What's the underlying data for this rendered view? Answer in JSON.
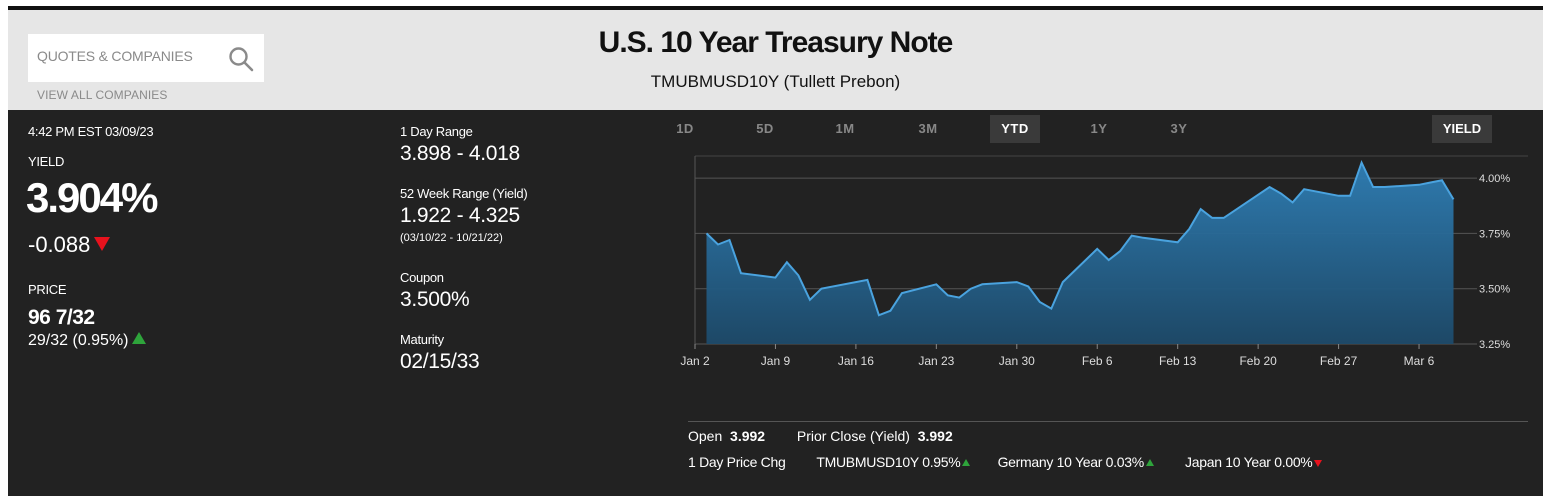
{
  "search": {
    "placeholder": "QUOTES & COMPANIES",
    "view_all": "VIEW ALL COMPANIES"
  },
  "header": {
    "title": "U.S. 10 Year Treasury Note",
    "subtitle": "TMUBMUSD10Y  (Tullett Prebon)"
  },
  "quote": {
    "timestamp": "4:42 PM EST 03/09/23",
    "yield_label": "YIELD",
    "yield_value": "3.904%",
    "yield_change": "-0.088",
    "price_label": "PRICE",
    "price_value": "96 7/32",
    "price_change": "29/32  (0.95%)"
  },
  "ranges": {
    "day_label": "1 Day Range",
    "day_value": "3.898 - 4.018",
    "week52_label": "52 Week Range (Yield)",
    "week52_value": "1.922 - 4.325",
    "week52_dates": "(03/10/22 - 10/21/22)",
    "coupon_label": "Coupon",
    "coupon_value": "3.500%",
    "maturity_label": "Maturity",
    "maturity_value": "02/15/33"
  },
  "chart_tabs": {
    "t1d": "1D",
    "t5d": "5D",
    "t1m": "1M",
    "t3m": "3M",
    "tytd": "YTD",
    "t1y": "1Y",
    "t3y": "3Y",
    "active": "YTD"
  },
  "chart_toggle": "YIELD",
  "chart_data": {
    "type": "area",
    "x_tick_labels": [
      "Jan 2",
      "Jan 9",
      "Jan 16",
      "Jan 23",
      "Jan 30",
      "Feb 6",
      "Feb 13",
      "Feb 20",
      "Feb 27",
      "Mar 6"
    ],
    "y_tick_labels": [
      "4.00%",
      "3.75%",
      "3.50%",
      "3.25%"
    ],
    "ylim": [
      3.25,
      4.1
    ],
    "series": [
      {
        "x": [
          "2023-01-03",
          "2023-01-04",
          "2023-01-05",
          "2023-01-06",
          "2023-01-09",
          "2023-01-10",
          "2023-01-11",
          "2023-01-12",
          "2023-01-13",
          "2023-01-17",
          "2023-01-18",
          "2023-01-19",
          "2023-01-20",
          "2023-01-23",
          "2023-01-24",
          "2023-01-25",
          "2023-01-26",
          "2023-01-27",
          "2023-01-30",
          "2023-01-31",
          "2023-02-01",
          "2023-02-02",
          "2023-02-03",
          "2023-02-06",
          "2023-02-07",
          "2023-02-08",
          "2023-02-09",
          "2023-02-10",
          "2023-02-13",
          "2023-02-14",
          "2023-02-15",
          "2023-02-16",
          "2023-02-17",
          "2023-02-21",
          "2023-02-22",
          "2023-02-23",
          "2023-02-24",
          "2023-02-27",
          "2023-02-28",
          "2023-03-01",
          "2023-03-02",
          "2023-03-03",
          "2023-03-06",
          "2023-03-07",
          "2023-03-08",
          "2023-03-09"
        ],
        "values": [
          3.75,
          3.7,
          3.72,
          3.57,
          3.55,
          3.62,
          3.56,
          3.45,
          3.5,
          3.54,
          3.38,
          3.4,
          3.48,
          3.52,
          3.47,
          3.46,
          3.5,
          3.52,
          3.53,
          3.51,
          3.44,
          3.41,
          3.53,
          3.68,
          3.63,
          3.67,
          3.74,
          3.73,
          3.71,
          3.77,
          3.86,
          3.82,
          3.82,
          3.96,
          3.93,
          3.89,
          3.95,
          3.92,
          3.92,
          4.07,
          3.96,
          3.96,
          3.97,
          3.98,
          3.99,
          3.904
        ]
      }
    ],
    "grid": true,
    "colors": {
      "line": "#4aa3df",
      "fill_top": "#2f7fb6",
      "fill_bottom": "#1d4a6a"
    }
  },
  "stats": {
    "open_label": "Open",
    "open_value": "3.992",
    "prior_label": "Prior Close (Yield)",
    "prior_value": "3.992",
    "chg_label": "1 Day Price Chg",
    "items": [
      {
        "label": "TMUBMUSD10Y 0.95%",
        "dir": "up"
      },
      {
        "label": "Germany 10 Year 0.03%",
        "dir": "up"
      },
      {
        "label": "Japan 10 Year 0.00%",
        "dir": "down"
      }
    ]
  }
}
